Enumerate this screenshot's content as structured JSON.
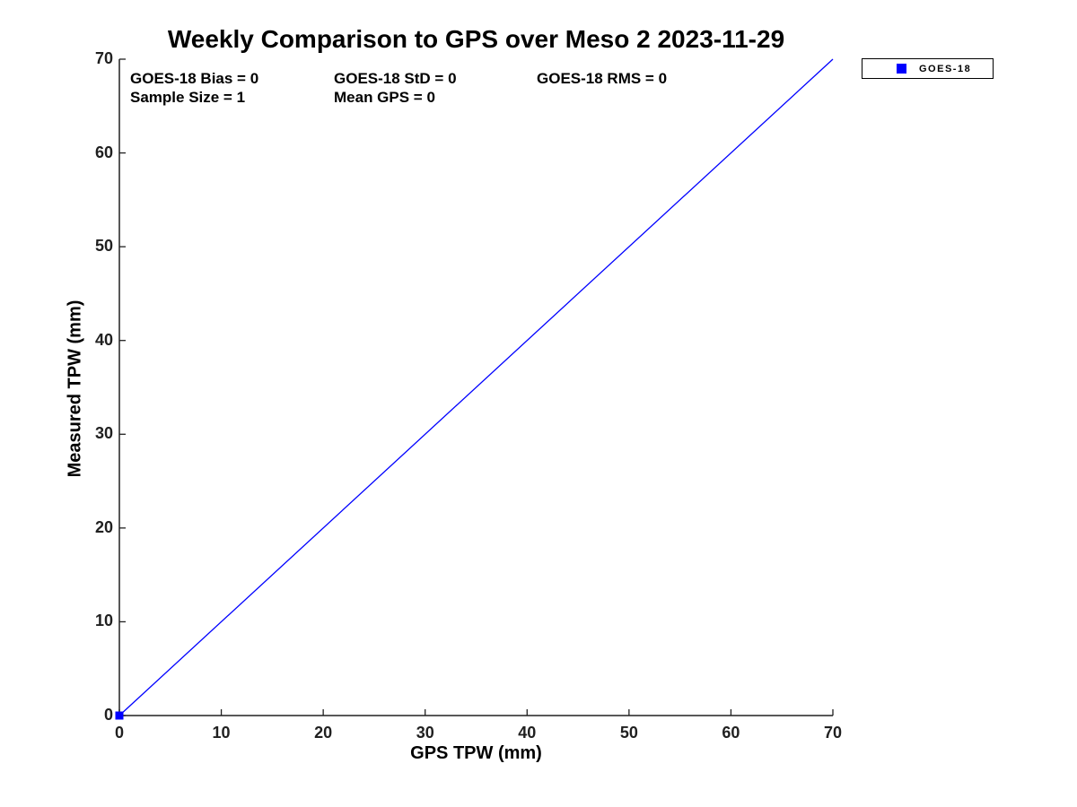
{
  "figure": {
    "background": "#ffffff"
  },
  "chart_data": {
    "type": "scatter",
    "title": "Weekly Comparison to GPS over Meso 2 2023-11-29",
    "xlabel": "GPS TPW (mm)",
    "ylabel": "Measured TPW (mm)",
    "xlim": [
      0,
      70
    ],
    "ylim": [
      0,
      70
    ],
    "xticks": [
      0,
      10,
      20,
      30,
      40,
      50,
      60,
      70
    ],
    "yticks": [
      0,
      10,
      20,
      30,
      40,
      50,
      60,
      70
    ],
    "grid": false,
    "box": false,
    "legend_position": "outside-top-right",
    "series": [
      {
        "name": "GOES-18",
        "type": "scatter",
        "marker": "square",
        "color": "#0000ff",
        "points": [
          [
            0,
            0
          ]
        ]
      }
    ],
    "reference_line": {
      "name": "identity-line",
      "from": [
        0,
        0
      ],
      "to": [
        70,
        70
      ],
      "color": "#0000ff",
      "width": 1.3
    },
    "annotations": [
      "GOES-18 Bias = 0",
      "GOES-18 StD = 0",
      "GOES-18 RMS = 0",
      "Sample Size = 1",
      "Mean GPS = 0"
    ]
  },
  "colors": {
    "accent_blue": "#0000ff",
    "axis": "#202020",
    "text": "#000000"
  }
}
